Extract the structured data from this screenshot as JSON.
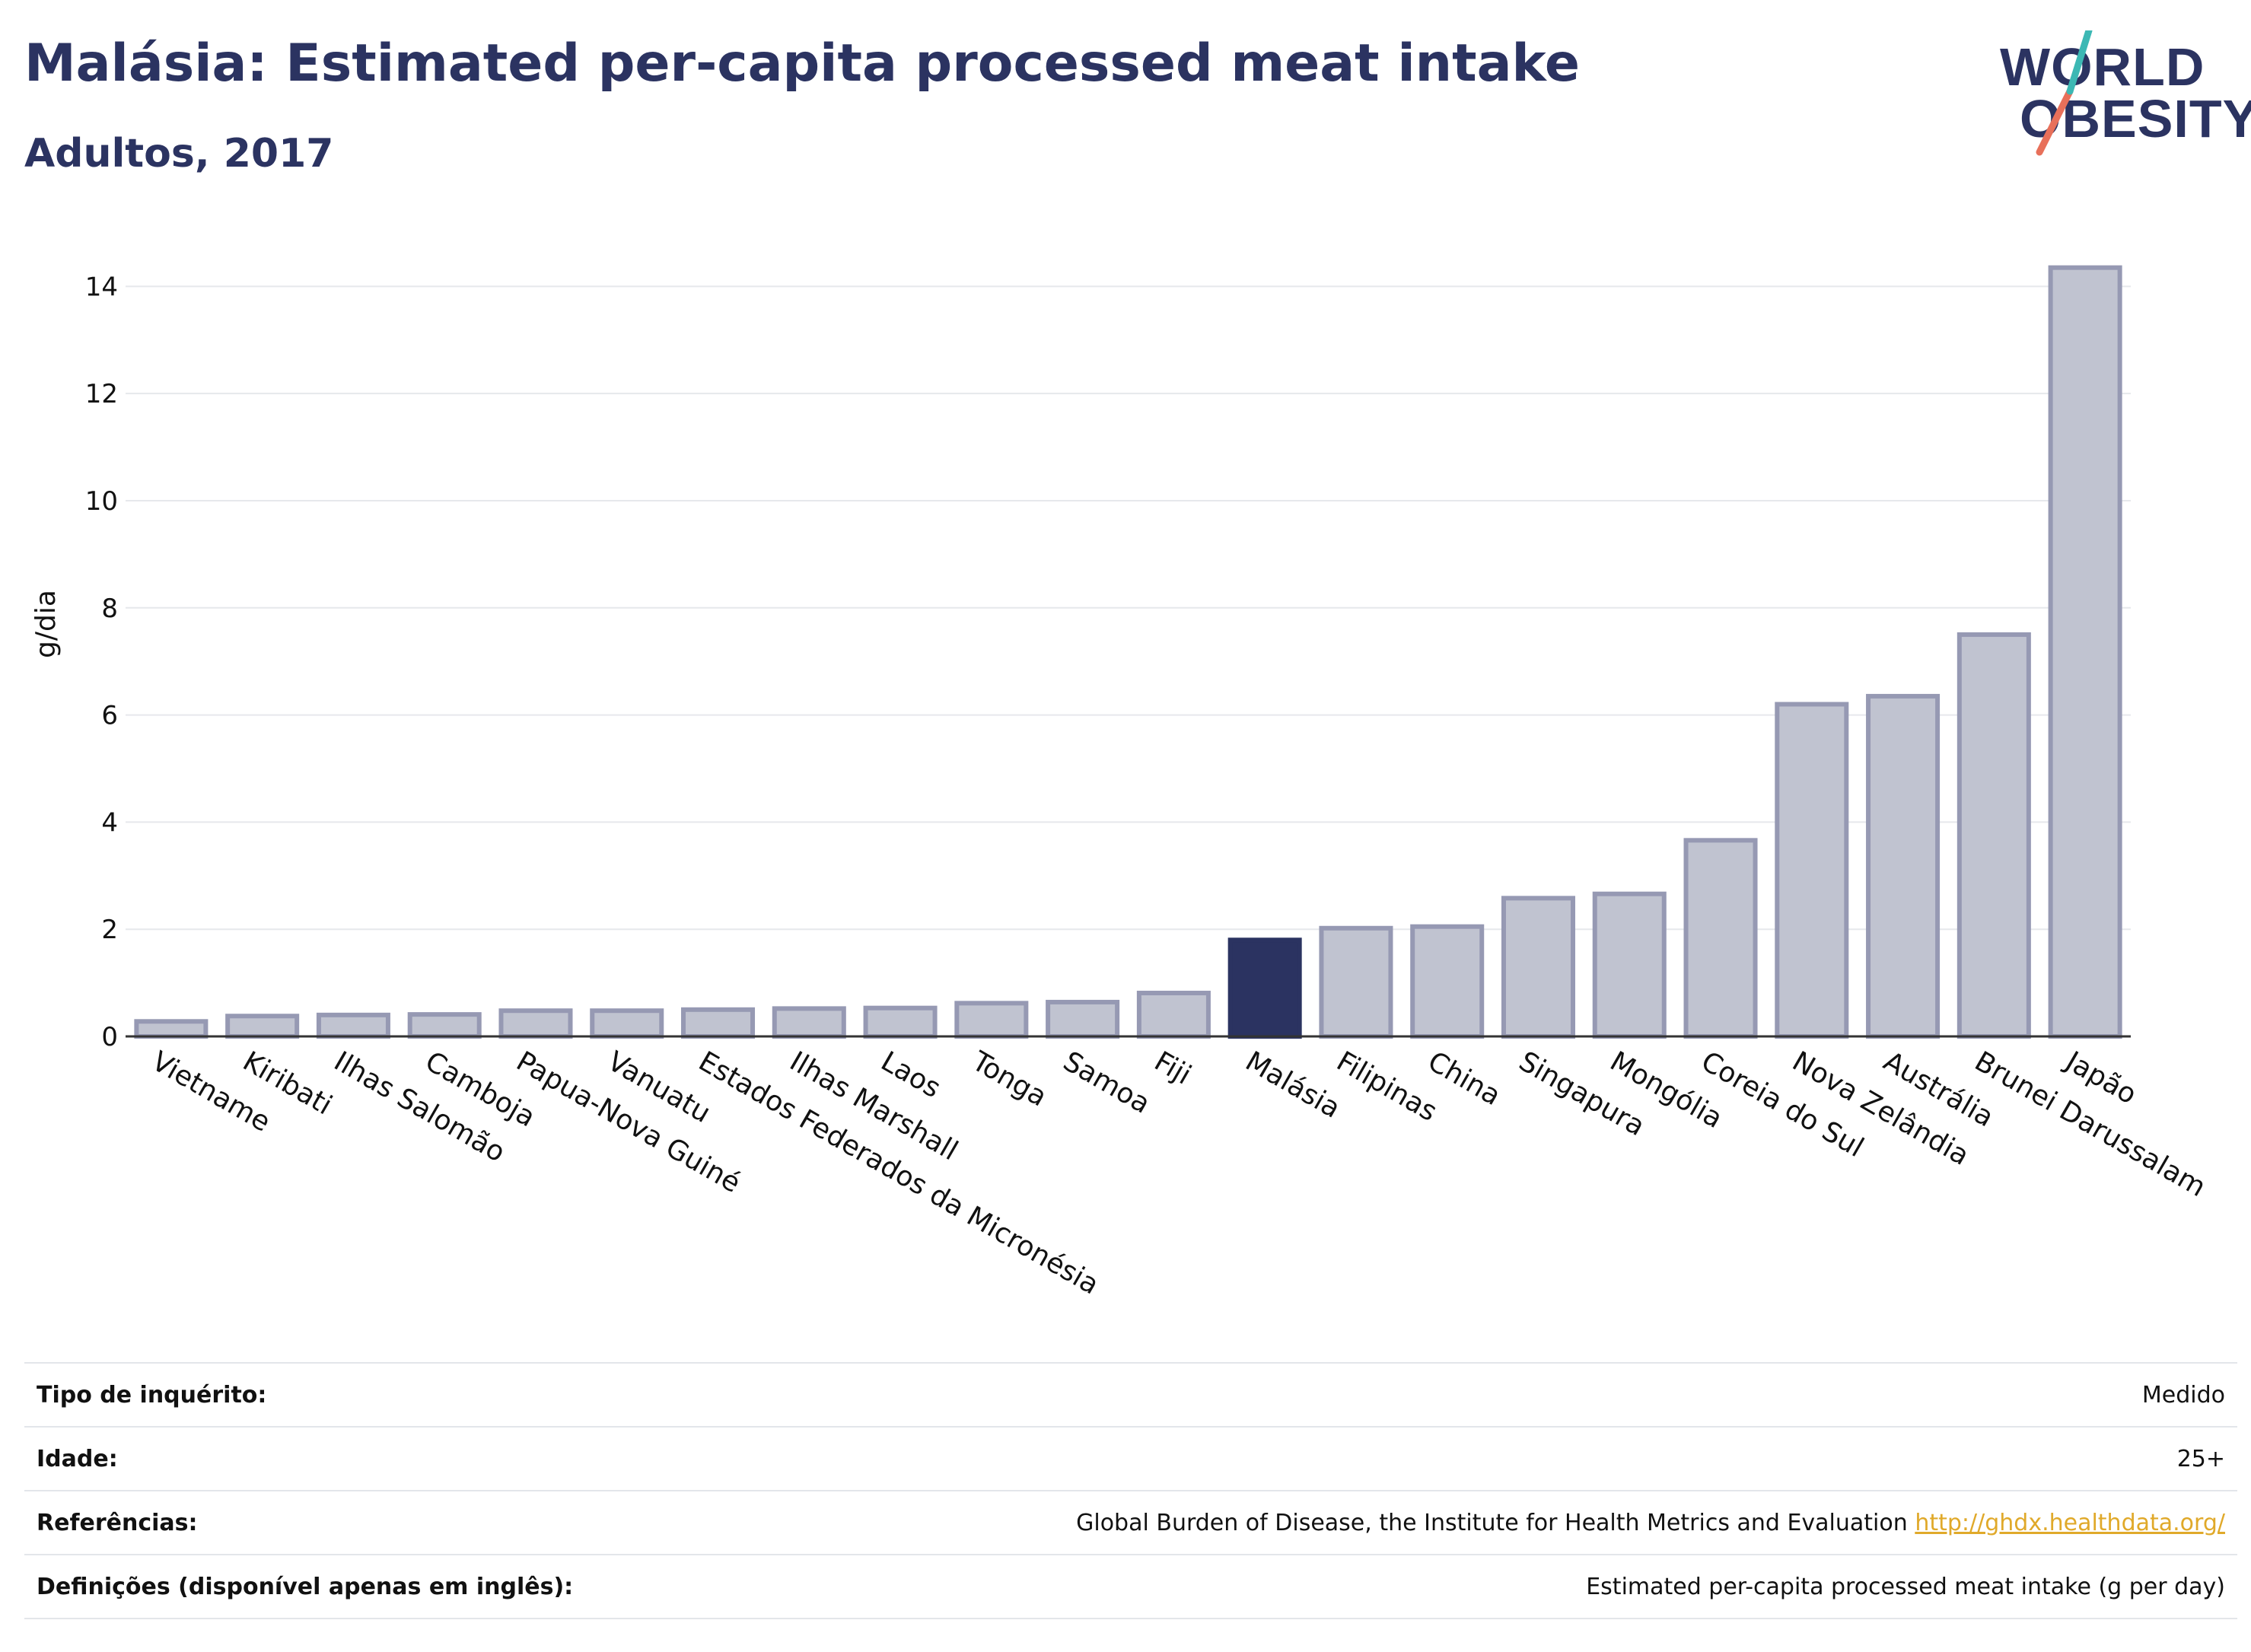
{
  "title": "Malásia: Estimated per-capita processed meat intake",
  "subtitle": "Adultos, 2017",
  "logo": {
    "line1": "WORLD",
    "line2": "OBESITY"
  },
  "colors": {
    "highlight": "#2b3361",
    "bar": "#c0c3d0",
    "bar_border": "#9699b3",
    "title": "#2b3361",
    "link": "#e0a92a"
  },
  "chart_data": {
    "type": "bar",
    "title": "Malásia: Estimated per-capita processed meat intake",
    "subtitle": "Adultos, 2017",
    "xlabel": "",
    "ylabel": "g/dia",
    "ylim": [
      0,
      14.8
    ],
    "yticks": [
      0,
      2,
      4,
      6,
      8,
      10,
      12,
      14
    ],
    "grid": true,
    "highlight": "Malásia",
    "categories": [
      "Vietname",
      "Kiribati",
      "Ilhas Salomão",
      "Camboja",
      "Papua-Nova Guiné",
      "Vanuatu",
      "Estados Federados da Micronésia",
      "Ilhas Marshall",
      "Laos",
      "Tonga",
      "Samoa",
      "Fiji",
      "Malásia",
      "Filipinas",
      "China",
      "Singapura",
      "Mongólia",
      "Coreia do Sul",
      "Nova Zelândia",
      "Austrália",
      "Brunei Darussalam",
      "Japão"
    ],
    "values": [
      0.28,
      0.38,
      0.4,
      0.41,
      0.48,
      0.48,
      0.5,
      0.52,
      0.53,
      0.62,
      0.64,
      0.81,
      1.8,
      2.02,
      2.05,
      2.58,
      2.66,
      3.66,
      6.2,
      6.35,
      7.5,
      14.35
    ]
  },
  "info": [
    {
      "label": "Tipo de inquérito:",
      "value": "Medido"
    },
    {
      "label": "Idade:",
      "value": "25+"
    },
    {
      "label": "Referências:",
      "value": "Global Burden of Disease, the Institute for Health Metrics and Evaluation",
      "link": "http://ghdx.healthdata.org/"
    },
    {
      "label": "Definições (disponível apenas em inglês):",
      "value": "Estimated per-capita processed meat intake (g per day)"
    }
  ]
}
